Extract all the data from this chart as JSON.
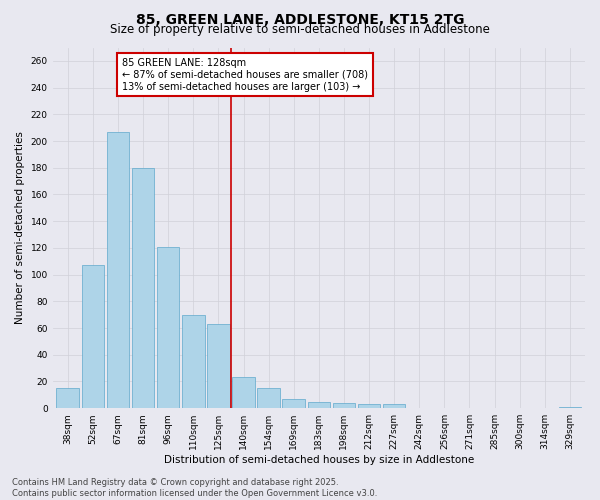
{
  "title_line1": "85, GREEN LANE, ADDLESTONE, KT15 2TG",
  "title_line2": "Size of property relative to semi-detached houses in Addlestone",
  "xlabel": "Distribution of semi-detached houses by size in Addlestone",
  "ylabel": "Number of semi-detached properties",
  "categories": [
    "38sqm",
    "52sqm",
    "67sqm",
    "81sqm",
    "96sqm",
    "110sqm",
    "125sqm",
    "140sqm",
    "154sqm",
    "169sqm",
    "183sqm",
    "198sqm",
    "212sqm",
    "227sqm",
    "242sqm",
    "256sqm",
    "271sqm",
    "285sqm",
    "300sqm",
    "314sqm",
    "329sqm"
  ],
  "values": [
    15,
    107,
    207,
    180,
    121,
    70,
    63,
    23,
    15,
    7,
    5,
    4,
    3,
    3,
    0,
    0,
    0,
    0,
    0,
    0,
    1
  ],
  "bar_color": "#aed4e8",
  "bar_edge_color": "#5fa8cc",
  "vline_x_index": 6.5,
  "annotation_text": "85 GREEN LANE: 128sqm",
  "annotation_smaller": "← 87% of semi-detached houses are smaller (708)",
  "annotation_larger": "13% of semi-detached houses are larger (103) →",
  "annotation_box_color": "#ffffff",
  "annotation_box_edge": "#cc0000",
  "vline_color": "#cc0000",
  "ylim": [
    0,
    270
  ],
  "yticks": [
    0,
    20,
    40,
    60,
    80,
    100,
    120,
    140,
    160,
    180,
    200,
    220,
    240,
    260
  ],
  "grid_color": "#d0d0d8",
  "bg_color": "#e8e8f0",
  "footer_line1": "Contains HM Land Registry data © Crown copyright and database right 2025.",
  "footer_line2": "Contains public sector information licensed under the Open Government Licence v3.0.",
  "title_fontsize": 10,
  "subtitle_fontsize": 8.5,
  "axis_label_fontsize": 7.5,
  "tick_fontsize": 6.5,
  "annotation_fontsize": 7,
  "footer_fontsize": 6
}
